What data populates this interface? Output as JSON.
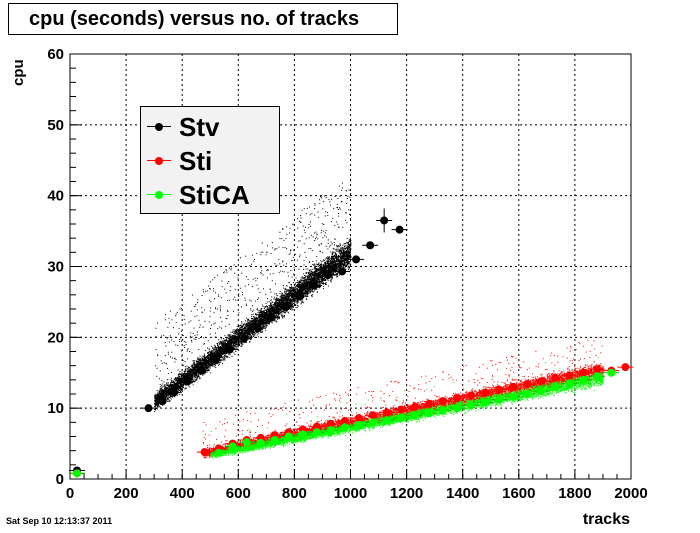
{
  "title": "cpu (seconds) versus no. of tracks",
  "timestamp": "Sat Sep 10 12:13:37 2011",
  "chart_data": {
    "type": "scatter",
    "title": "cpu (seconds) versus no. of tracks",
    "xlabel": "tracks",
    "ylabel": "cpu",
    "xlim": [
      0,
      2000
    ],
    "ylim": [
      0,
      60
    ],
    "xticks": [
      "0",
      "200",
      "400",
      "600",
      "800",
      "1000",
      "1200",
      "1400",
      "1600",
      "1800",
      "2000"
    ],
    "yticks": [
      "0",
      "10",
      "20",
      "30",
      "40",
      "50",
      "60"
    ],
    "grid": true,
    "legend_position": "top-left",
    "series": [
      {
        "name": "Stv",
        "color": "#000000",
        "x": [
          25,
          280,
          330,
          370,
          420,
          470,
          520,
          570,
          620,
          670,
          720,
          770,
          820,
          870,
          920,
          970,
          1020,
          1070,
          1120,
          1175
        ],
        "y": [
          1.2,
          10,
          11,
          12.2,
          13.8,
          15.3,
          16.8,
          18.3,
          19.8,
          21.3,
          22.8,
          24.3,
          25.8,
          27.3,
          28.8,
          29.3,
          31,
          33,
          36.5,
          35.2
        ]
      },
      {
        "name": "Sti",
        "color": "#ff0000",
        "x": [
          25,
          480,
          530,
          580,
          630,
          680,
          730,
          780,
          830,
          880,
          930,
          980,
          1030,
          1080,
          1130,
          1180,
          1230,
          1280,
          1330,
          1380,
          1430,
          1480,
          1530,
          1580,
          1630,
          1680,
          1730,
          1780,
          1830,
          1880,
          1930,
          1980
        ],
        "y": [
          0.8,
          3.8,
          4.3,
          5,
          5.5,
          5.8,
          6.2,
          6.6,
          7,
          7.4,
          7.8,
          8.2,
          8.6,
          9,
          9.4,
          9.8,
          10.2,
          10.6,
          11,
          11.4,
          11.8,
          12.2,
          12.6,
          13,
          13.4,
          13.8,
          14.3,
          14.6,
          15,
          15.5,
          15.3,
          15.8
        ]
      },
      {
        "name": "StiCA",
        "color": "#00ff00",
        "x": [
          25,
          530,
          580,
          630,
          680,
          730,
          780,
          830,
          880,
          930,
          980,
          1030,
          1080,
          1130,
          1180,
          1230,
          1280,
          1330,
          1380,
          1430,
          1480,
          1530,
          1580,
          1630,
          1680,
          1730,
          1780,
          1830,
          1880,
          1930
        ],
        "y": [
          0.8,
          3.7,
          4.6,
          5.2,
          5.1,
          5.5,
          6,
          6.3,
          6.6,
          6.9,
          7.3,
          7.6,
          8,
          8.3,
          8.6,
          9,
          9.3,
          9.7,
          10,
          10.4,
          10.8,
          11.2,
          11.6,
          12,
          12.4,
          13,
          13.5,
          14,
          14.5,
          15
        ]
      }
    ]
  }
}
